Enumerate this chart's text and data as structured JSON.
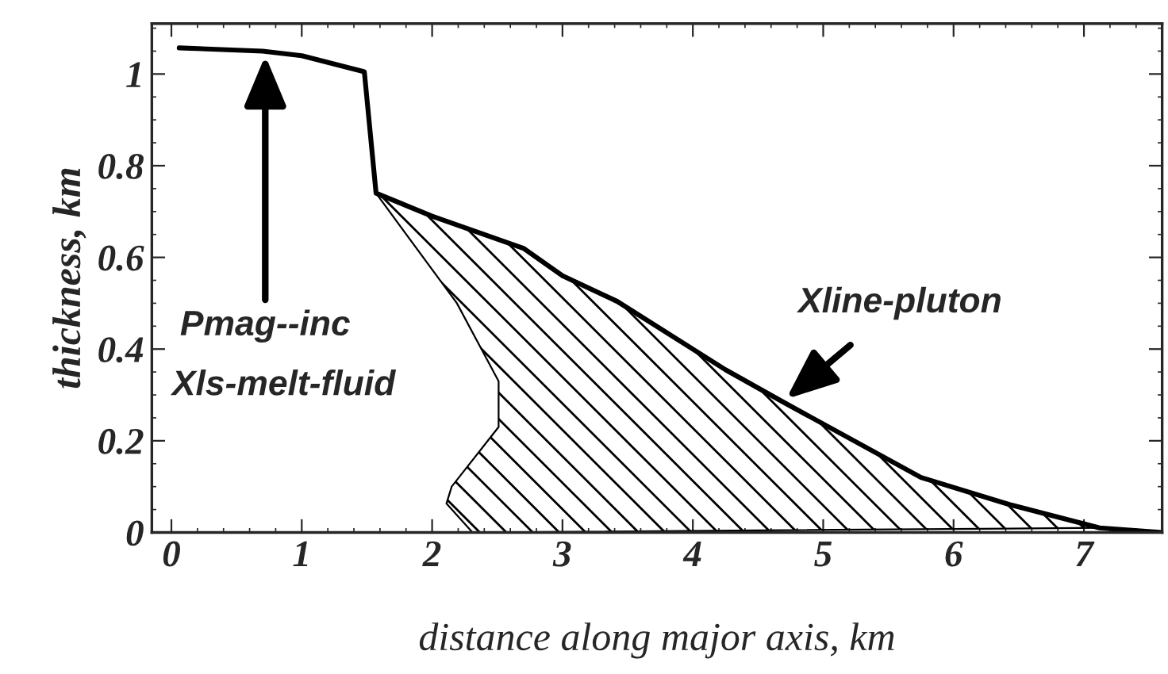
{
  "chart_data": {
    "type": "line",
    "xlabel": "distance along major axis, km",
    "ylabel": "thickness, km",
    "xlim": [
      -0.15,
      7.6
    ],
    "ylim": [
      0,
      1.11
    ],
    "xticks": [
      0,
      1,
      2,
      3,
      4,
      5,
      6,
      7
    ],
    "yticks": [
      0,
      0.2,
      0.4,
      0.6,
      0.8,
      {
        "value": 1,
        "label": "1"
      }
    ],
    "grid": false,
    "marker": "none",
    "line_style": "solid",
    "series": [
      {
        "type": "area",
        "color": "#000000",
        "x": [
          1.57,
          2.19,
          2.51,
          2.51,
          2.15,
          2.11,
          2.31,
          7.12,
          6.44,
          5.75,
          4.69,
          4.25,
          3.42,
          3.0,
          2.7,
          2.0,
          1.57
        ],
        "values": [
          0.74,
          0.5,
          0.33,
          0.23,
          0.1,
          0.063,
          0.0,
          0.01,
          0.06,
          0.12,
          0.285,
          0.355,
          0.504,
          0.56,
          0.62,
          0.69,
          0.74
        ]
      },
      {
        "color": "#000000",
        "x": [
          0.06,
          0.7,
          1.0,
          1.48,
          1.57,
          2.0,
          2.7,
          3.0,
          3.42,
          4.25,
          4.69,
          5.75,
          6.44,
          7.12,
          7.6
        ],
        "values": [
          1.057,
          1.05,
          1.04,
          1.005,
          0.74,
          0.69,
          0.62,
          0.56,
          0.504,
          0.355,
          0.285,
          0.12,
          0.06,
          0.01,
          0.0
        ]
      }
    ],
    "annotations": [
      {
        "text": "Pmag--inc",
        "x": 0.72,
        "y": 1.05
      },
      "Xls-melt-fluid",
      {
        "text": "Xline-pluton",
        "x": 4.69,
        "y": 0.285
      }
    ]
  }
}
